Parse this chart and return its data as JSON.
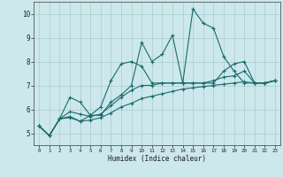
{
  "xlabel": "Humidex (Indice chaleur)",
  "x": [
    0,
    1,
    2,
    3,
    4,
    5,
    6,
    7,
    8,
    9,
    10,
    11,
    12,
    13,
    14,
    15,
    16,
    17,
    18,
    19,
    20,
    21,
    22,
    23
  ],
  "line1": [
    5.3,
    4.9,
    5.6,
    5.7,
    5.5,
    5.75,
    5.75,
    6.3,
    6.6,
    7.0,
    8.8,
    8.0,
    8.3,
    9.1,
    7.1,
    10.2,
    9.6,
    9.4,
    8.2,
    7.6,
    7.1,
    7.1,
    7.1,
    7.2
  ],
  "line2": [
    5.3,
    4.9,
    5.6,
    6.5,
    6.3,
    5.75,
    6.1,
    7.2,
    7.9,
    8.0,
    7.8,
    7.1,
    7.1,
    7.1,
    7.1,
    7.1,
    7.1,
    7.1,
    7.6,
    7.9,
    8.0,
    7.1,
    7.1,
    7.2
  ],
  "line3": [
    5.3,
    4.9,
    5.6,
    5.9,
    5.8,
    5.7,
    5.8,
    6.15,
    6.5,
    6.8,
    7.0,
    7.0,
    7.1,
    7.1,
    7.1,
    7.1,
    7.1,
    7.2,
    7.35,
    7.4,
    7.6,
    7.1,
    7.1,
    7.2
  ],
  "line4": [
    5.3,
    4.9,
    5.6,
    5.65,
    5.5,
    5.55,
    5.65,
    5.85,
    6.1,
    6.25,
    6.45,
    6.55,
    6.65,
    6.75,
    6.85,
    6.9,
    6.95,
    7.0,
    7.05,
    7.1,
    7.15,
    7.1,
    7.1,
    7.2
  ],
  "bg_color": "#cce8ec",
  "grid_color": "#aacccc",
  "line_color": "#1a6b6b",
  "ylim": [
    4.5,
    10.5
  ],
  "xlim": [
    -0.5,
    23.5
  ],
  "yticks": [
    5,
    6,
    7,
    8,
    9,
    10
  ]
}
